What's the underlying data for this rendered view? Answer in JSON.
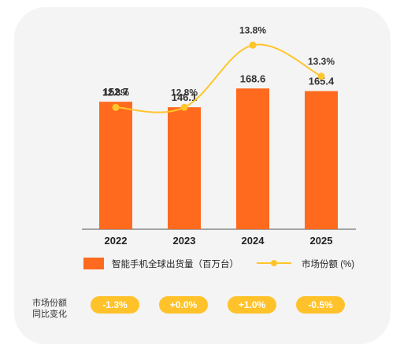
{
  "chart_data": {
    "type": "bar",
    "categories": [
      "2022",
      "2023",
      "2024",
      "2025"
    ],
    "series": [
      {
        "name": "智能手机全球出货量（百万台）",
        "type": "bar",
        "values": [
          152.7,
          146.1,
          168.6,
          165.4
        ],
        "labels": [
          "152.7",
          "146.1",
          "168.6",
          "165.4"
        ]
      },
      {
        "name": "市场份额 (%)",
        "type": "line",
        "values": [
          12.8,
          12.8,
          13.8,
          13.3
        ],
        "labels": [
          "12.8%",
          "12.8%",
          "13.8%",
          "13.3%"
        ]
      }
    ],
    "yoy_change_title": [
      "市场份额",
      "同比变化"
    ],
    "yoy_change": [
      "-1.3%",
      "+0.0%",
      "+1.0%",
      "-0.5%"
    ],
    "colors": {
      "bar": "#ff6a1f",
      "line": "#ffc52a",
      "pill": "#ffc22a",
      "card": "#f4f4f4"
    }
  }
}
